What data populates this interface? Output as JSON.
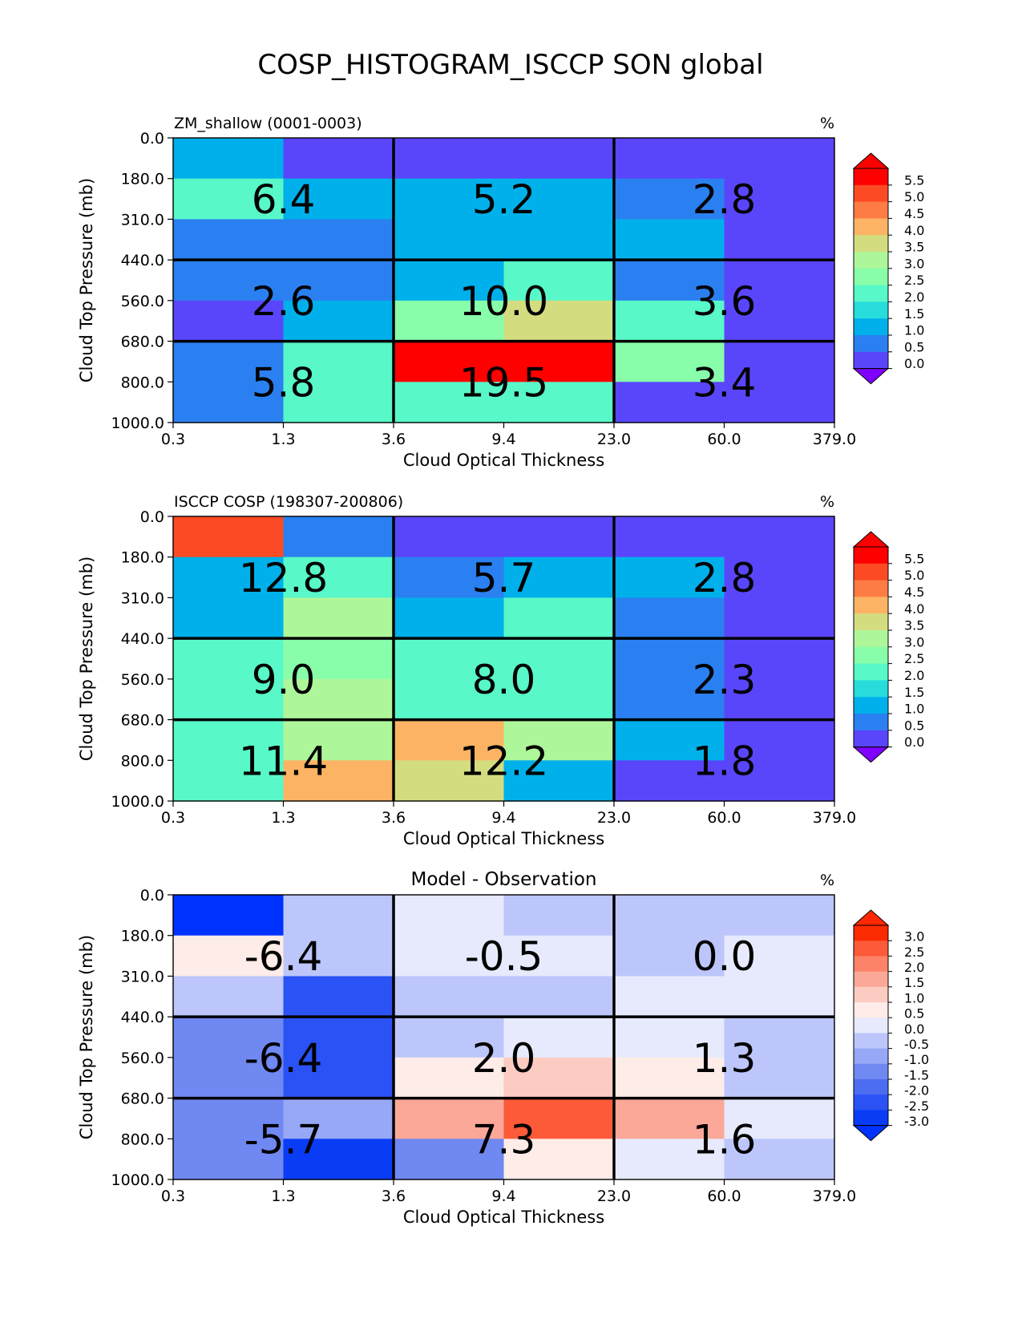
{
  "figure_title": "COSP_HISTOGRAM_ISCCP SON global",
  "chart_data": [
    {
      "type": "heatmap",
      "title": "ZM_shallow (0001-0003)",
      "unit": "%",
      "xlabel": "Cloud Optical Thickness",
      "ylabel": "Cloud Top Pressure (mb)",
      "x_edges": [
        "0.3",
        "1.3",
        "3.6",
        "9.4",
        "23.0",
        "60.0",
        "379.0"
      ],
      "y_edges": [
        "0.0",
        "180.0",
        "310.0",
        "440.0",
        "560.0",
        "680.0",
        "800.0",
        "1000.0"
      ],
      "values": [
        [
          1.4,
          0.3,
          0.3,
          0.3,
          0.3,
          0.2
        ],
        [
          2.0,
          1.4,
          1.4,
          1.4,
          0.8,
          0.2
        ],
        [
          0.8,
          0.8,
          1.4,
          1.4,
          1.4,
          0.2
        ],
        [
          0.8,
          0.8,
          1.4,
          2.2,
          0.8,
          0.2
        ],
        [
          0.3,
          1.4,
          2.8,
          3.6,
          2.0,
          0.2
        ],
        [
          0.8,
          2.2,
          6.0,
          6.0,
          2.8,
          0.2
        ],
        [
          0.8,
          2.0,
          2.2,
          2.2,
          0.3,
          0.2
        ]
      ],
      "group_totals": [
        [
          "6.4",
          "5.2",
          "2.8"
        ],
        [
          "2.6",
          "10.0",
          "3.6"
        ],
        [
          "5.8",
          "19.5",
          "3.4"
        ]
      ],
      "colorbar": {
        "ticks": [
          "5.5",
          "5.0",
          "4.5",
          "4.0",
          "3.5",
          "3.0",
          "2.5",
          "2.0",
          "1.5",
          "1.0",
          "0.5",
          "0.0"
        ],
        "levels": [
          0,
          0.5,
          1,
          1.5,
          2,
          2.5,
          3,
          3.5,
          4,
          4.5,
          5,
          5.5
        ],
        "colors": [
          "#5a46fa",
          "#2a80f0",
          "#00b0ea",
          "#28dcdc",
          "#58f8c8",
          "#88feaa",
          "#aef69a",
          "#d4dc80",
          "#fcb464",
          "#fc7c44",
          "#fc4a24",
          "#fe0000"
        ],
        "under": "#8000ff",
        "over": "#ff0000"
      }
    },
    {
      "type": "heatmap",
      "title": "ISCCP COSP (198307-200806)",
      "unit": "%",
      "xlabel": "Cloud Optical Thickness",
      "ylabel": "Cloud Top Pressure (mb)",
      "x_edges": [
        "0.3",
        "1.3",
        "3.6",
        "9.4",
        "23.0",
        "60.0",
        "379.0"
      ],
      "y_edges": [
        "0.0",
        "180.0",
        "310.0",
        "440.0",
        "560.0",
        "680.0",
        "800.0",
        "1000.0"
      ],
      "values": [
        [
          5.2,
          0.8,
          0.3,
          0.3,
          0.3,
          0.2
        ],
        [
          1.4,
          2.2,
          0.8,
          1.4,
          1.4,
          0.2
        ],
        [
          1.4,
          3.2,
          1.4,
          2.0,
          0.8,
          0.3
        ],
        [
          2.0,
          2.8,
          2.0,
          2.0,
          0.8,
          0.3
        ],
        [
          2.0,
          3.2,
          2.2,
          2.2,
          0.8,
          0.3
        ],
        [
          2.0,
          3.2,
          4.2,
          3.2,
          1.4,
          0.3
        ],
        [
          2.0,
          4.2,
          3.6,
          1.4,
          0.3,
          0.3
        ]
      ],
      "group_totals": [
        [
          "12.8",
          "5.7",
          "2.8"
        ],
        [
          "9.0",
          "8.0",
          "2.3"
        ],
        [
          "11.4",
          "12.2",
          "1.8"
        ]
      ],
      "colorbar": {
        "ticks": [
          "5.5",
          "5.0",
          "4.5",
          "4.0",
          "3.5",
          "3.0",
          "2.5",
          "2.0",
          "1.5",
          "1.0",
          "0.5",
          "0.0"
        ],
        "levels": [
          0,
          0.5,
          1,
          1.5,
          2,
          2.5,
          3,
          3.5,
          4,
          4.5,
          5,
          5.5
        ],
        "colors": [
          "#5a46fa",
          "#2a80f0",
          "#00b0ea",
          "#28dcdc",
          "#58f8c8",
          "#88feaa",
          "#aef69a",
          "#d4dc80",
          "#fcb464",
          "#fc7c44",
          "#fc4a24",
          "#fe0000"
        ],
        "under": "#8000ff",
        "over": "#ff0000"
      }
    },
    {
      "type": "heatmap",
      "title": "Model - Observation",
      "unit": "%",
      "xlabel": "Cloud Optical Thickness",
      "ylabel": "Cloud Top Pressure (mb)",
      "x_edges": [
        "0.3",
        "1.3",
        "3.6",
        "9.4",
        "23.0",
        "60.0",
        "379.0"
      ],
      "y_edges": [
        "0.0",
        "180.0",
        "310.0",
        "440.0",
        "560.0",
        "680.0",
        "800.0",
        "1000.0"
      ],
      "values": [
        [
          -3.2,
          -0.2,
          0.2,
          -0.2,
          -0.2,
          -0.2
        ],
        [
          0.7,
          -0.2,
          0.2,
          0.2,
          -0.2,
          0.2
        ],
        [
          -0.2,
          -2.2,
          -0.2,
          -0.2,
          0.2,
          0.2
        ],
        [
          -1.2,
          -2.2,
          -0.2,
          0.2,
          0.2,
          -0.2
        ],
        [
          -1.2,
          -2.2,
          0.7,
          1.2,
          0.7,
          -0.2
        ],
        [
          -1.2,
          -0.7,
          1.7,
          2.7,
          1.7,
          0.2
        ],
        [
          -1.2,
          -2.7,
          -1.2,
          0.7,
          0.2,
          -0.2
        ]
      ],
      "group_totals": [
        [
          "-6.4",
          "-0.5",
          "0.0"
        ],
        [
          "-6.4",
          "2.0",
          "1.3"
        ],
        [
          "-5.7",
          "7.3",
          "1.6"
        ]
      ],
      "colorbar": {
        "ticks": [
          "3.0",
          "2.5",
          "2.0",
          "1.5",
          "1.0",
          "0.5",
          "0.0",
          "-0.5",
          "-1.0",
          "-1.5",
          "-2.0",
          "-2.5",
          "-3.0"
        ],
        "levels": [
          -3,
          -2.5,
          -2,
          -1.5,
          -1,
          -0.5,
          0,
          0.5,
          1,
          1.5,
          2,
          2.5,
          3
        ],
        "colors": [
          "#0a3cf6",
          "#2a52f4",
          "#4c6cf2",
          "#7088f2",
          "#96a8f6",
          "#bcc6fa",
          "#e6eafc",
          "#fdece8",
          "#fcccc2",
          "#fca898",
          "#fc8268",
          "#fc5a38",
          "#fc2a00"
        ],
        "under": "#0032ff",
        "over": "#ff2800"
      }
    }
  ]
}
